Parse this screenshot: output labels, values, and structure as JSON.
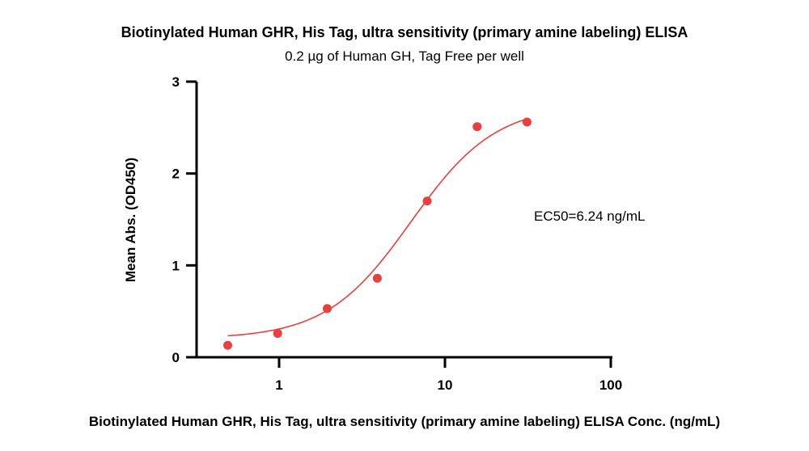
{
  "chart_data": {
    "type": "scatter",
    "title": "Biotinylated Human GHR, His Tag, ultra sensitivity (primary amine labeling) ELISA",
    "subtitle": "0.2 µg of Human GH, Tag Free per well",
    "xlabel": "Biotinylated Human GHR, His Tag, ultra sensitivity (primary amine labeling) ELISA Conc. (ng/mL)",
    "ylabel": "Mean Abs. (OD450)",
    "xscale": "log",
    "xlim": [
      0.3,
      100
    ],
    "ylim": [
      0,
      3
    ],
    "xticks": [
      1,
      10,
      100
    ],
    "xtick_labels": [
      "1",
      "10",
      "100"
    ],
    "yticks": [
      0,
      1,
      2,
      3
    ],
    "ytick_labels": [
      "0",
      "1",
      "2",
      "3"
    ],
    "grid": false,
    "series": [
      {
        "color": "#e8403f",
        "points": [
          {
            "x": 0.49,
            "y": 0.13
          },
          {
            "x": 0.98,
            "y": 0.26
          },
          {
            "x": 1.95,
            "y": 0.53
          },
          {
            "x": 3.91,
            "y": 0.86
          },
          {
            "x": 7.81,
            "y": 1.7
          },
          {
            "x": 15.63,
            "y": 2.51
          },
          {
            "x": 31.25,
            "y": 2.56
          }
        ],
        "fit": {
          "bottom": 0.2,
          "top": 2.75,
          "ec50": 6.24,
          "hill": 1.7,
          "x_range": [
            0.49,
            31.25
          ]
        }
      }
    ],
    "annotation": "EC50=6.24 ng/mL"
  }
}
